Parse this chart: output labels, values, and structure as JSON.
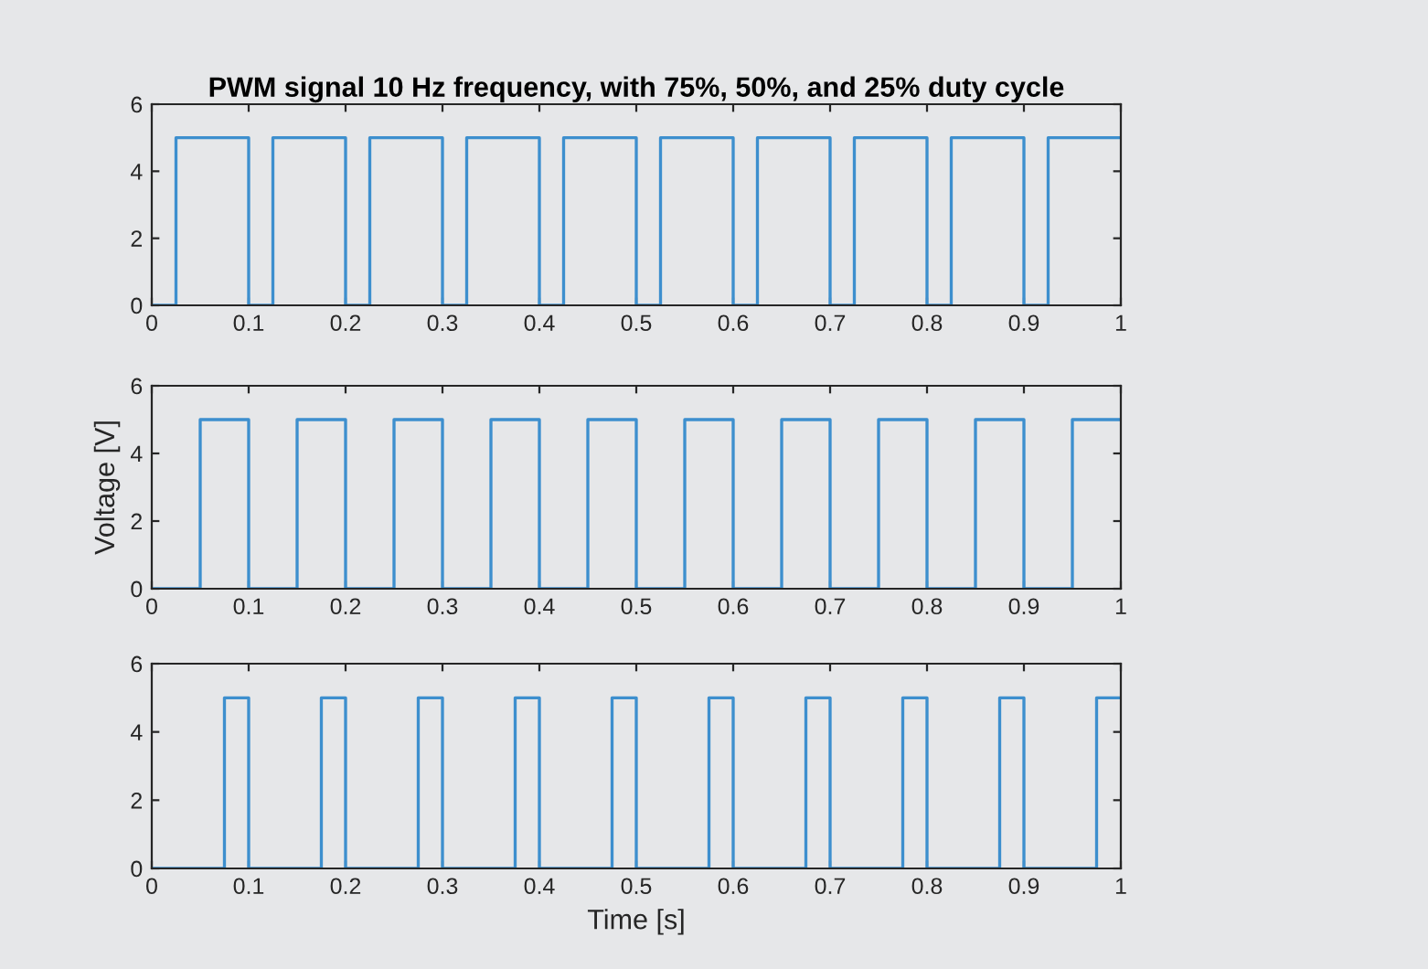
{
  "chart_data": [
    {
      "type": "step",
      "title": "PWM signal 10 Hz frequency, with 75%, 50%, and 25% duty cycle",
      "xlim": [
        0,
        1
      ],
      "ylim": [
        0,
        6
      ],
      "xticks": [
        0,
        0.1,
        0.2,
        0.3,
        0.4,
        0.5,
        0.6,
        0.7,
        0.8,
        0.9,
        1
      ],
      "yticks": [
        0,
        2,
        4,
        6
      ],
      "grid": false,
      "series": [
        {
          "color": "#3d8fce",
          "x": [
            0,
            0.025,
            0.1,
            0.125,
            0.2,
            0.225,
            0.3,
            0.325,
            0.4,
            0.425,
            0.5,
            0.525,
            0.6,
            0.625,
            0.7,
            0.725,
            0.8,
            0.825,
            0.9,
            0.925,
            1
          ],
          "values": [
            0,
            5,
            0,
            5,
            0,
            5,
            0,
            5,
            0,
            5,
            0,
            5,
            0,
            5,
            0,
            5,
            0,
            5,
            0,
            5,
            5
          ]
        }
      ]
    },
    {
      "type": "step",
      "ylabel": "Voltage [V]",
      "xlim": [
        0,
        1
      ],
      "ylim": [
        0,
        6
      ],
      "xticks": [
        0,
        0.1,
        0.2,
        0.3,
        0.4,
        0.5,
        0.6,
        0.7,
        0.8,
        0.9,
        1
      ],
      "yticks": [
        0,
        2,
        4,
        6
      ],
      "grid": false,
      "series": [
        {
          "color": "#3d8fce",
          "x": [
            0,
            0.05,
            0.1,
            0.15,
            0.2,
            0.25,
            0.3,
            0.35,
            0.4,
            0.45,
            0.5,
            0.55,
            0.6,
            0.65,
            0.7,
            0.75,
            0.8,
            0.85,
            0.9,
            0.95,
            1
          ],
          "values": [
            0,
            5,
            0,
            5,
            0,
            5,
            0,
            5,
            0,
            5,
            0,
            5,
            0,
            5,
            0,
            5,
            0,
            5,
            0,
            5,
            5
          ]
        }
      ]
    },
    {
      "type": "step",
      "xlabel": "Time [s]",
      "xlim": [
        0,
        1
      ],
      "ylim": [
        0,
        6
      ],
      "xticks": [
        0,
        0.1,
        0.2,
        0.3,
        0.4,
        0.5,
        0.6,
        0.7,
        0.8,
        0.9,
        1
      ],
      "yticks": [
        0,
        2,
        4,
        6
      ],
      "grid": false,
      "series": [
        {
          "color": "#3d8fce",
          "x": [
            0,
            0.075,
            0.1,
            0.175,
            0.2,
            0.275,
            0.3,
            0.375,
            0.4,
            0.475,
            0.5,
            0.575,
            0.6,
            0.675,
            0.7,
            0.775,
            0.8,
            0.875,
            0.9,
            0.975,
            1
          ],
          "values": [
            0,
            5,
            0,
            5,
            0,
            5,
            0,
            5,
            0,
            5,
            0,
            5,
            0,
            5,
            0,
            5,
            0,
            5,
            0,
            5,
            5
          ]
        }
      ]
    }
  ]
}
